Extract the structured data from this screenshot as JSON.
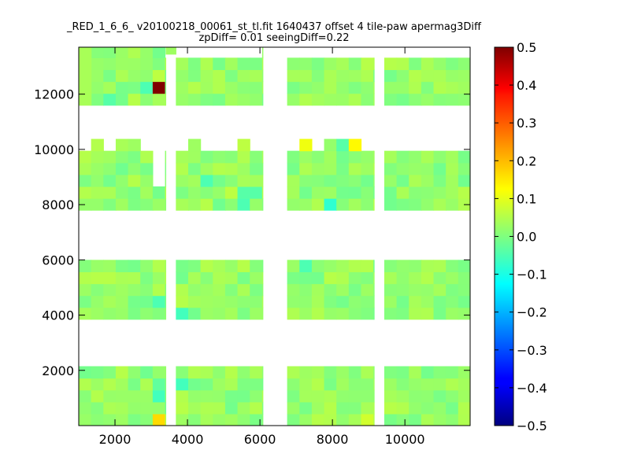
{
  "chart_data": {
    "type": "heatmap",
    "title_lines": [
      "_RED_1_6_6_ v20100218_00061_st_tl.fit 1640437 offset 4 tile-paw apermag3Diff",
      "zpDiff= 0.01 seeingDiff=0.22"
    ],
    "xlabel": "",
    "ylabel": "",
    "xlim": [
      1000,
      11800
    ],
    "ylim": [
      0,
      13700
    ],
    "x_ticks": [
      2000,
      4000,
      6000,
      8000,
      10000
    ],
    "x_tick_labels": [
      "2000",
      "4000",
      "6000",
      "8000",
      "10000"
    ],
    "y_ticks": [
      2000,
      4000,
      6000,
      8000,
      10000,
      12000
    ],
    "y_tick_labels": [
      "2000",
      "4000",
      "6000",
      "8000",
      "10000",
      "12000"
    ],
    "colorbar": {
      "min": -0.5,
      "max": 0.5,
      "ticks": [
        0.5,
        0.4,
        0.3,
        0.2,
        0.1,
        0.0,
        -0.1,
        -0.2,
        -0.3,
        -0.4,
        -0.5
      ],
      "tick_labels": [
        "0.5",
        "0.4",
        "0.3",
        "0.2",
        "0.1",
        "0.0",
        "−0.1",
        "−0.2",
        "−0.3",
        "−0.4",
        "−0.5"
      ],
      "colormap": "jet"
    },
    "cell_size": [
      340,
      430
    ],
    "column_blocks": [
      {
        "x": [
          1000,
          3400
        ]
      },
      {
        "x": [
          3680,
          6080
        ]
      },
      {
        "x": [
          6750,
          9150
        ]
      },
      {
        "x": [
          9430,
          11830
        ]
      }
    ],
    "row_blocks": [
      {
        "y": [
          0,
          2150
        ]
      },
      {
        "y": [
          3850,
          6000
        ]
      },
      {
        "y": [
          7800,
          9950
        ]
      },
      {
        "y": [
          11600,
          13750
        ]
      }
    ],
    "base_value": 0.02,
    "overrides": [
      {
        "x": 3180,
        "y": 12220,
        "value": 0.5
      },
      {
        "x": 3180,
        "y": 180,
        "value": 0.16
      },
      {
        "x": 3180,
        "y": 1000,
        "value": -0.06
      },
      {
        "x": 3180,
        "y": 1400,
        "value": -0.03
      },
      {
        "x": 3180,
        "y": 4600,
        "value": -0.05
      },
      {
        "x": 3180,
        "y": 12650,
        "value": 0.06
      },
      {
        "x": 2850,
        "y": 12220,
        "value": -0.05
      },
      {
        "x": 1770,
        "y": 11750,
        "value": -0.04
      },
      {
        "x": 3850,
        "y": 1600,
        "value": -0.06
      },
      {
        "x": 3850,
        "y": 4000,
        "value": -0.06
      },
      {
        "x": 5200,
        "y": 8400,
        "value": 0.06
      },
      {
        "x": 5550,
        "y": 8000,
        "value": -0.05
      },
      {
        "x": 5550,
        "y": 8400,
        "value": -0.04
      },
      {
        "x": 5900,
        "y": 8400,
        "value": -0.04
      },
      {
        "x": 7840,
        "y": 8000,
        "value": -0.08
      },
      {
        "x": 8860,
        "y": 180,
        "value": 0.08
      },
      {
        "x": 8860,
        "y": 5650,
        "value": 0.05
      },
      {
        "x": 11000,
        "y": 13450,
        "value": -0.07
      },
      {
        "x": 9000,
        "y": 13450,
        "value": -0.09
      },
      {
        "x": 4580,
        "y": 8850,
        "value": -0.05
      },
      {
        "x": 7140,
        "y": 5650,
        "value": -0.05
      }
    ],
    "notches": [
      {
        "x": [
          1000,
          1340
        ],
        "y": [
          11600,
          13750
        ]
      },
      {
        "x": [
          2910,
          3400
        ],
        "y": [
          8800,
          9950
        ]
      },
      {
        "x": [
          3400,
          3680
        ],
        "y": [
          13450,
          13750
        ]
      },
      {
        "x": [
          3680,
          6080
        ],
        "y": [
          13450,
          13750
        ]
      },
      {
        "x": [
          6750,
          9150
        ],
        "y": [
          13450,
          13750
        ]
      },
      {
        "x": [
          9430,
          11830
        ],
        "y": [
          13450,
          13750
        ]
      },
      {
        "x": [
          9150,
          9430
        ],
        "y": [
          13450,
          13750
        ]
      }
    ],
    "floating_cells": [
      {
        "x": [
          1340,
          1680
        ],
        "y": [
          9950,
          10380
        ],
        "value": 0.05
      },
      {
        "x": [
          2020,
          2360
        ],
        "y": [
          9950,
          10380
        ],
        "value": 0.04
      },
      {
        "x": [
          2360,
          2700
        ],
        "y": [
          9950,
          10380
        ],
        "value": 0.03
      },
      {
        "x": [
          4020,
          4360
        ],
        "y": [
          9950,
          10380
        ],
        "value": 0.03
      },
      {
        "x": [
          5380,
          5720
        ],
        "y": [
          9950,
          10380
        ],
        "value": 0.06
      },
      {
        "x": [
          7090,
          7430
        ],
        "y": [
          9950,
          10380
        ],
        "value": 0.11
      },
      {
        "x": [
          7770,
          8110
        ],
        "y": [
          9950,
          10380
        ],
        "value": 0.02
      },
      {
        "x": [
          8110,
          8450
        ],
        "y": [
          9950,
          10380
        ],
        "value": -0.04
      },
      {
        "x": [
          8450,
          8790
        ],
        "y": [
          9950,
          10380
        ],
        "value": 0.13
      },
      {
        "x": [
          1000,
          1340
        ],
        "y": [
          11600,
          13750
        ],
        "value": 0.04
      },
      {
        "x": [
          3400,
          3680
        ],
        "y": [
          13450,
          13750
        ],
        "value": 0.03
      }
    ]
  }
}
